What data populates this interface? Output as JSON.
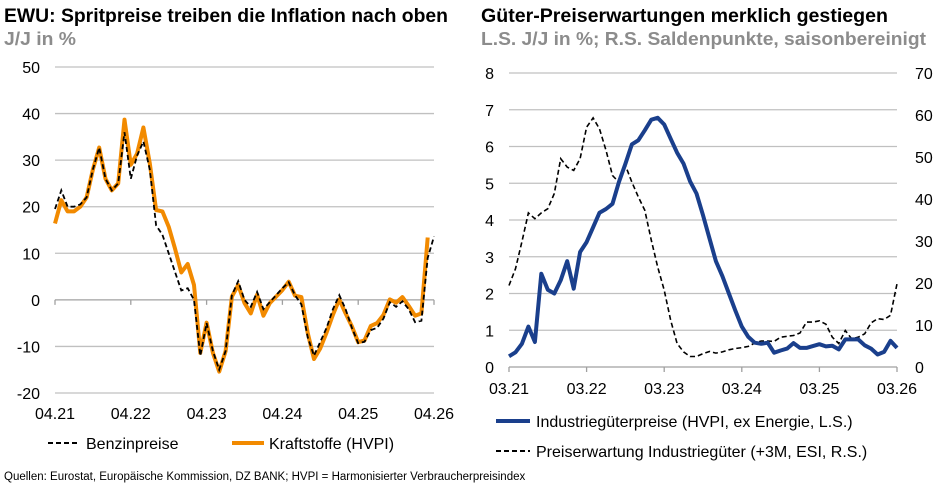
{
  "left_chart": {
    "title": "EWU: Spritpreise treiben die Inflation nach oben",
    "subtitle": "J/J in %"
  },
  "right_chart": {
    "title": "Güter-Preiserwartungen merklich gestiegen",
    "subtitle": "L.S. J/J in %; R.S. Saldenpunkte, saisonbereinigt"
  },
  "footer": "Quellen: Eurostat, Europäische Kommission, DZ BANK; HVPI = Harmonisierter Verbraucherpreisindex",
  "colors": {
    "orange": "#f28a00",
    "navy": "#1a3f8c",
    "black": "#000000",
    "grid": "#c0c0c0"
  },
  "chart_data": [
    {
      "type": "line",
      "x_start": "04.21",
      "x_end": "04.26",
      "frequency": "monthly",
      "x_ticks": [
        "04.21",
        "04.22",
        "04.23",
        "04.24",
        "04.25",
        "04.26"
      ],
      "y_ticks": [
        50,
        40,
        30,
        20,
        10,
        0,
        -10,
        -20
      ],
      "ylim": [
        -20,
        50
      ],
      "grid": true,
      "legend": "bottom",
      "series": [
        {
          "name": "Benzinpreise",
          "style": "dashed",
          "color": "#000000",
          "values": [
            19.5,
            23.5,
            20,
            20,
            20.5,
            22,
            28,
            32.7,
            26,
            23.5,
            25,
            36,
            26,
            31,
            34,
            28,
            16,
            14,
            10,
            6,
            2,
            2.5,
            0,
            -12,
            -5,
            -11,
            -15,
            -11,
            1,
            4,
            0,
            -1.5,
            1.7,
            -2,
            -0.5,
            1,
            2.5,
            3.8,
            1,
            -1,
            -8,
            -12,
            -9,
            -6,
            -2,
            1,
            -2,
            -6,
            -9.3,
            -9,
            -6.5,
            -6,
            -4,
            -0.5,
            -1.5,
            -0.3,
            -2,
            -4.8,
            -4.5,
            9,
            13.6
          ]
        },
        {
          "name": "Kraftstoffe (HVPI)",
          "style": "solid",
          "color": "#f28a00",
          "values": [
            16.4,
            21.4,
            19,
            19,
            20,
            22,
            28,
            32.7,
            26,
            23.5,
            25,
            38.7,
            29,
            31.4,
            37,
            29.3,
            19.3,
            19,
            15.7,
            11,
            5.9,
            7.7,
            3.2,
            -11.4,
            -4.9,
            -11.4,
            -15.4,
            -11,
            0.7,
            3.2,
            -0.7,
            -2.9,
            1.1,
            -3.4,
            -0.7,
            0.7,
            2.1,
            3.9,
            0.9,
            0.6,
            -7.1,
            -12.7,
            -10.4,
            -7,
            -3.2,
            0.1,
            -2.9,
            -5.7,
            -9.1,
            -8.7,
            -5.6,
            -5,
            -3.2,
            0.1,
            -0.6,
            0.6,
            -1.3,
            -3.4,
            -2.9,
            13.4
          ]
        }
      ]
    },
    {
      "type": "line",
      "x_start": "03.21",
      "x_end": "03.26",
      "frequency": "monthly",
      "x_ticks": [
        "03.21",
        "03.22",
        "03.23",
        "03.24",
        "03.25",
        "03.26"
      ],
      "y_left_ticks": [
        8,
        7,
        6,
        5,
        4,
        3,
        2,
        1,
        0
      ],
      "y_right_ticks": [
        70,
        60,
        50,
        40,
        30,
        20,
        10,
        0
      ],
      "ylim_left": [
        0,
        8
      ],
      "ylim_right": [
        0,
        70
      ],
      "grid": true,
      "legend": "bottom",
      "series": [
        {
          "name": "Industriegüterpreise (HVPI, ex Energie, L.S.)",
          "axis": "left",
          "style": "solid",
          "color": "#1a3f8c",
          "values": [
            0.29,
            0.4,
            0.63,
            1.1,
            0.68,
            2.54,
            2.1,
            2.0,
            2.36,
            2.88,
            2.13,
            3.13,
            3.4,
            3.8,
            4.2,
            4.3,
            4.44,
            5.03,
            5.53,
            6.06,
            6.17,
            6.44,
            6.73,
            6.78,
            6.6,
            6.21,
            5.83,
            5.53,
            5.05,
            4.72,
            4.13,
            3.5,
            2.88,
            2.47,
            2.0,
            1.54,
            1.1,
            0.82,
            0.66,
            0.63,
            0.66,
            0.39,
            0.45,
            0.5,
            0.65,
            0.52,
            0.52,
            0.57,
            0.62,
            0.56,
            0.58,
            0.48,
            0.75,
            0.75,
            0.75,
            0.59,
            0.5,
            0.34,
            0.41,
            0.71,
            0.52
          ]
        },
        {
          "name": "Preiserwartung Industriegüter (+3M, ESI, R.S.)",
          "axis": "right",
          "style": "dashed",
          "color": "#000000",
          "values": [
            19.4,
            23.4,
            29.8,
            36.7,
            35.3,
            36.7,
            37.7,
            41.3,
            49.6,
            47.6,
            46.8,
            49.6,
            57.1,
            59.3,
            56.7,
            51.6,
            45.6,
            44.0,
            48.0,
            44.0,
            40.5,
            37.3,
            30.2,
            23.8,
            18.3,
            11.1,
            5.6,
            3.6,
            2.5,
            2.5,
            3.2,
            3.7,
            3.3,
            3.6,
            4.1,
            4.4,
            4.6,
            4.9,
            5.7,
            6.2,
            6.2,
            6.1,
            7.1,
            7.3,
            7.5,
            8.1,
            10.7,
            10.7,
            11.0,
            10.2,
            7.1,
            5.6,
            8.7,
            6.7,
            7.1,
            7.9,
            10.5,
            11.5,
            11.3,
            12.3,
            19.8
          ]
        }
      ]
    }
  ]
}
